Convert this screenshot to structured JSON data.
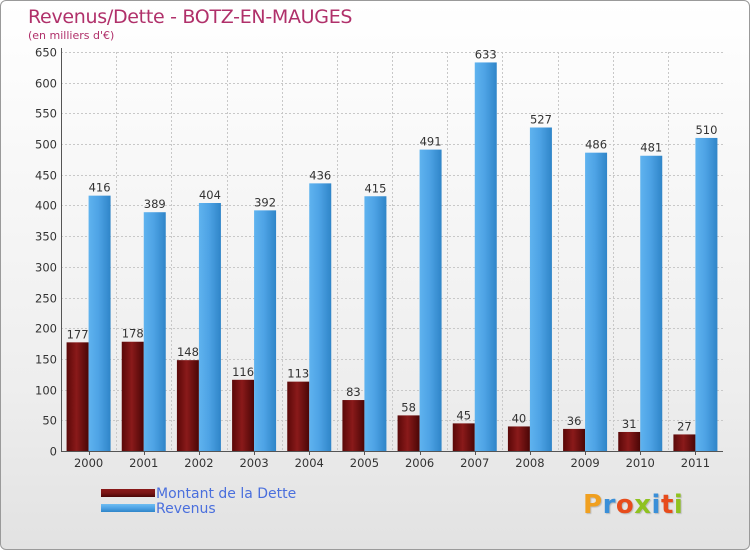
{
  "chart_data": {
    "type": "bar",
    "title": "Revenus/Dette - BOTZ-EN-MAUGES",
    "subtitle": "(en milliers d'€)",
    "categories": [
      "2000",
      "2001",
      "2002",
      "2003",
      "2004",
      "2005",
      "2006",
      "2007",
      "2008",
      "2009",
      "2010",
      "2011"
    ],
    "series": [
      {
        "name": "Montant de la Dette",
        "color": "#7a1515",
        "values": [
          177,
          178,
          148,
          116,
          113,
          83,
          58,
          45,
          40,
          36,
          31,
          27
        ]
      },
      {
        "name": "Revenus",
        "color": "#4ea3e5",
        "values": [
          416,
          389,
          404,
          392,
          436,
          415,
          491,
          633,
          527,
          486,
          481,
          510
        ]
      }
    ],
    "ylim": [
      0,
      650
    ],
    "yticks": [
      0,
      50,
      100,
      150,
      200,
      250,
      300,
      350,
      400,
      450,
      500,
      550,
      600,
      650
    ],
    "grid": true,
    "legend_position": "bottom-left"
  },
  "logo": {
    "letters": [
      {
        "ch": "P",
        "color": "#f0a020"
      },
      {
        "ch": "r",
        "color": "#3a8fd8"
      },
      {
        "ch": "o",
        "color": "#e74c1c"
      },
      {
        "ch": "x",
        "color": "#8fc220"
      },
      {
        "ch": "i",
        "color": "#3a8fd8"
      },
      {
        "ch": "t",
        "color": "#e74c1c"
      },
      {
        "ch": "i",
        "color": "#8fc220"
      }
    ]
  }
}
